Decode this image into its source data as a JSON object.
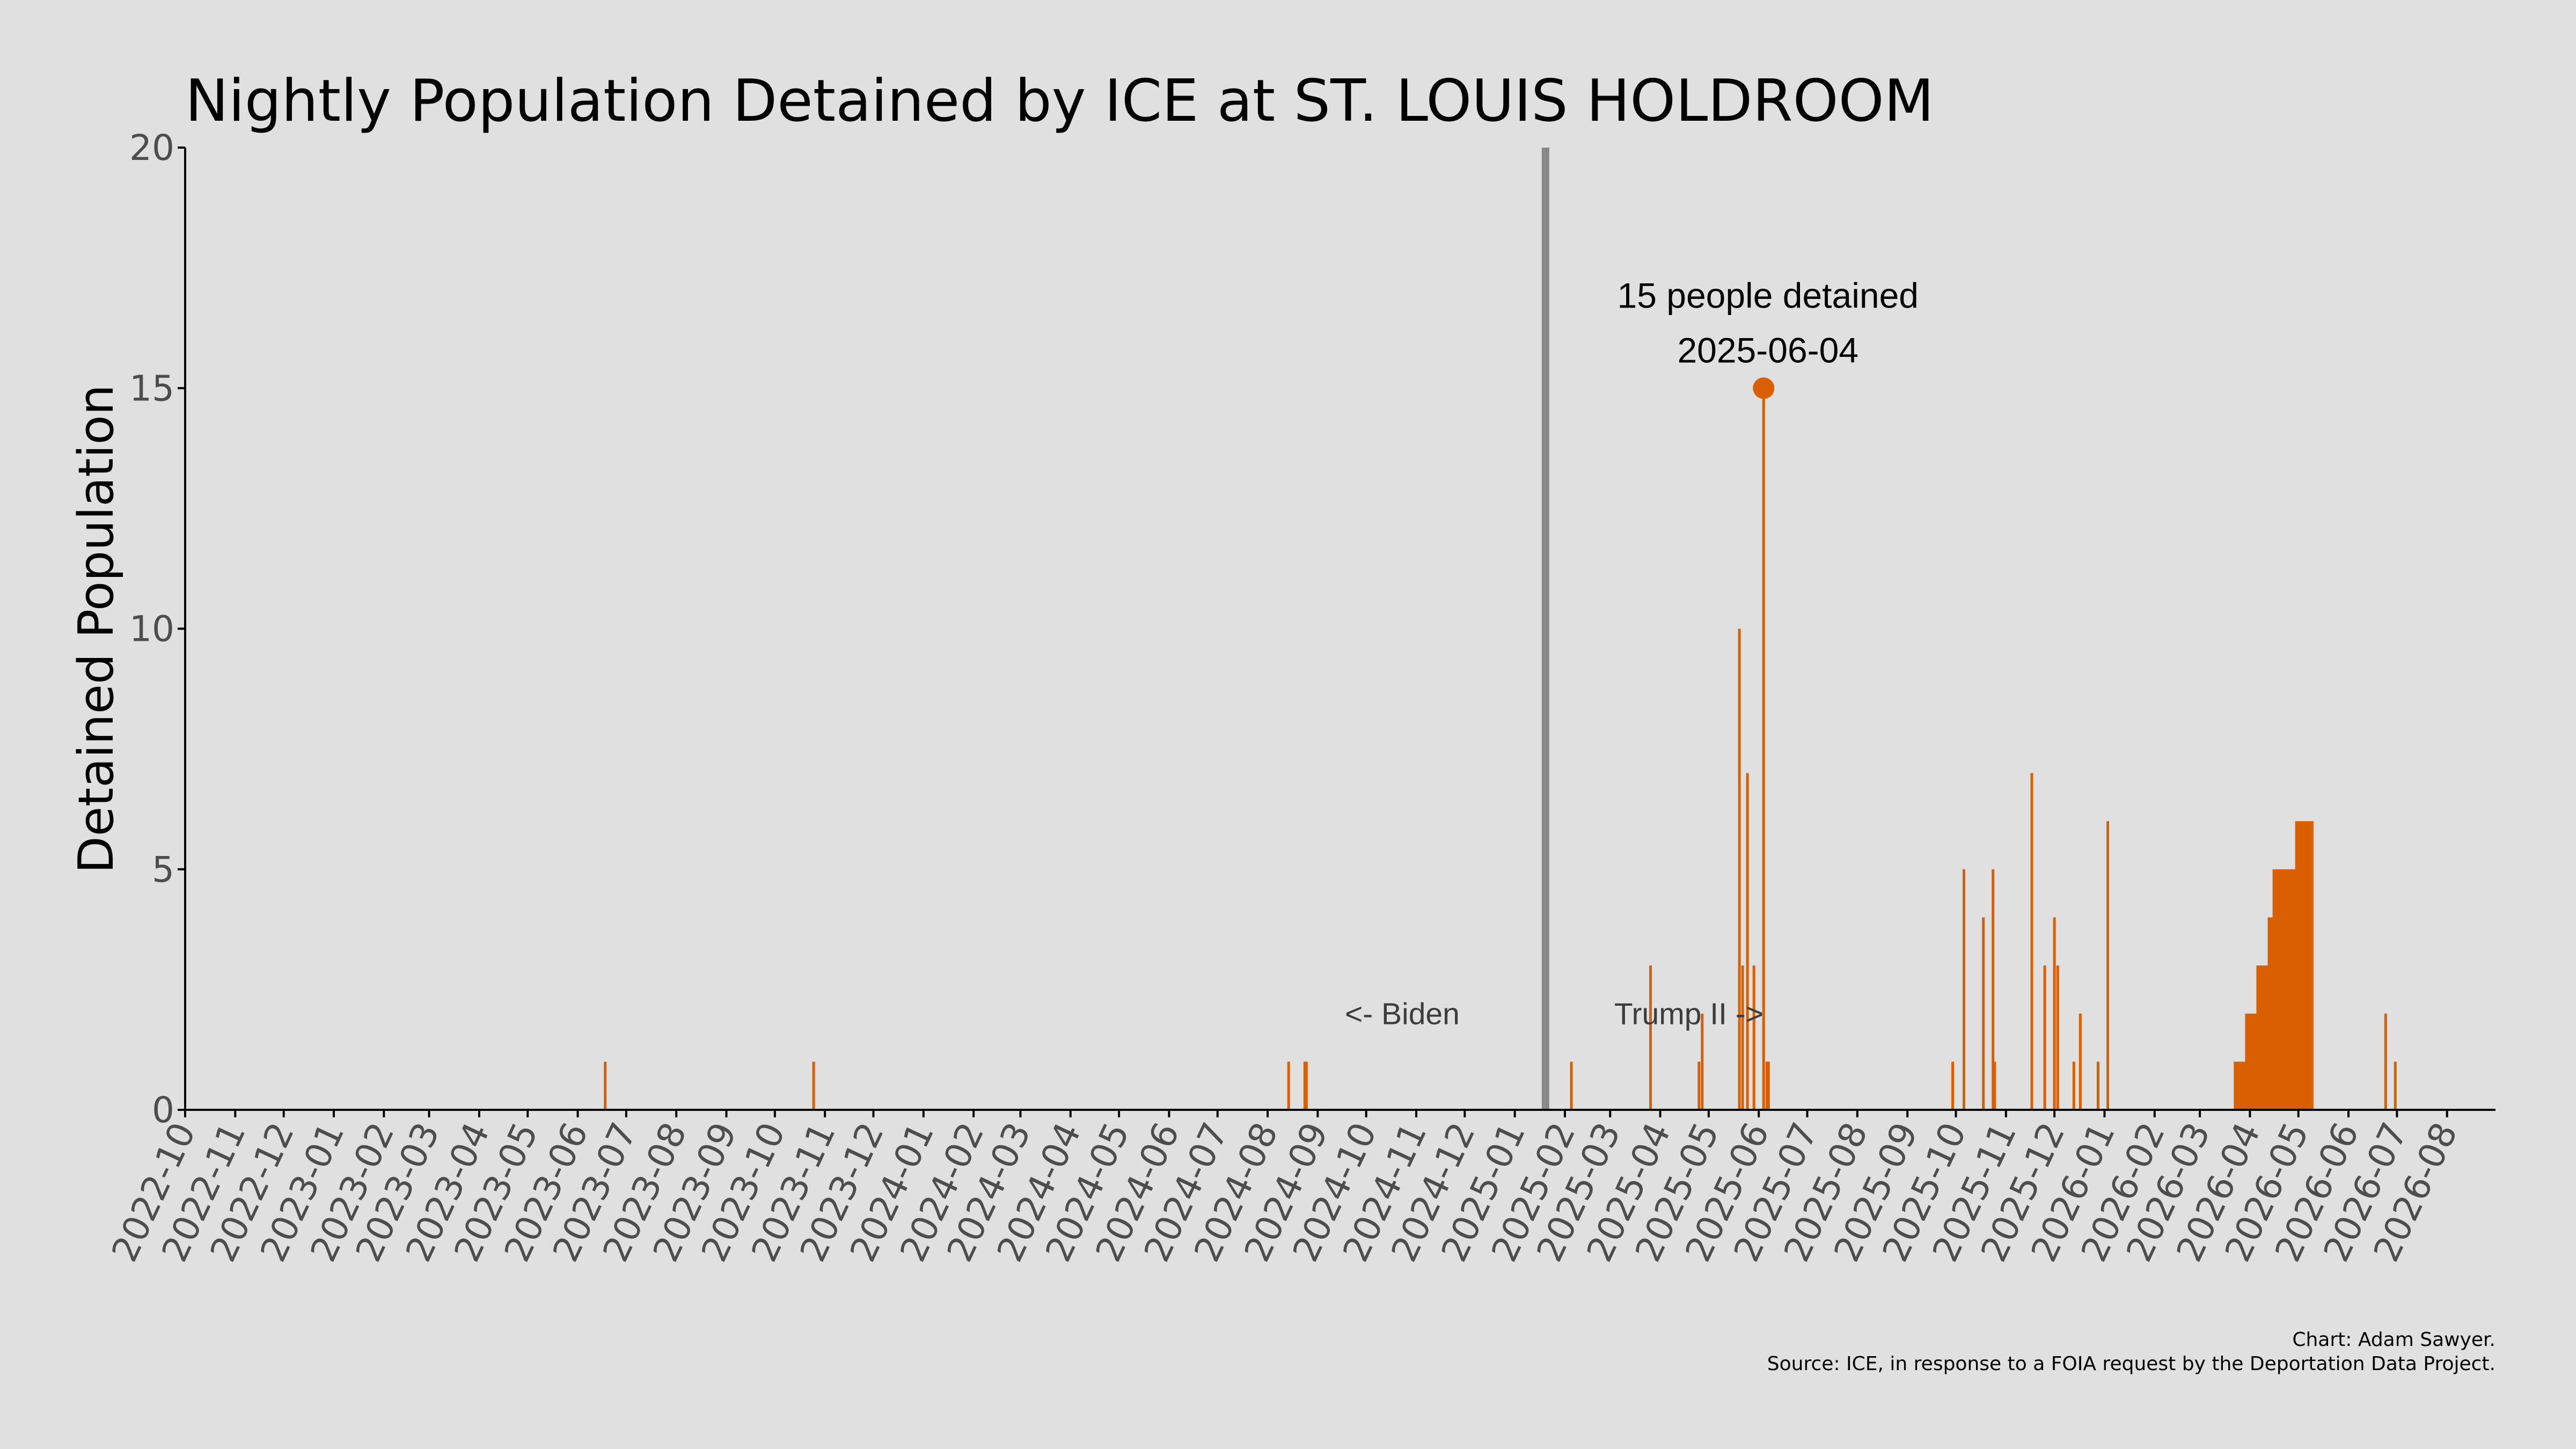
{
  "chart_data": {
    "type": "bar",
    "title": "Nightly Population Detained by ICE at ST. LOUIS HOLDROOM",
    "ylabel": "Detained Population",
    "xlabel": "",
    "ylim": [
      0,
      20
    ],
    "xlim": [
      "2022-10-01",
      "2026-08-31"
    ],
    "yticks": [
      0,
      5,
      10,
      15,
      20
    ],
    "xticks": [
      "2022-10",
      "2022-11",
      "2022-12",
      "2023-01",
      "2023-02",
      "2023-03",
      "2023-04",
      "2023-05",
      "2023-06",
      "2023-07",
      "2023-08",
      "2023-09",
      "2023-10",
      "2023-11",
      "2023-12",
      "2024-01",
      "2024-02",
      "2024-03",
      "2024-04",
      "2024-05",
      "2024-06",
      "2024-07",
      "2024-08",
      "2024-09",
      "2024-10",
      "2024-11",
      "2024-12",
      "2025-01",
      "2025-02",
      "2025-03",
      "2025-04",
      "2025-05",
      "2025-06",
      "2025-07",
      "2025-08",
      "2025-09",
      "2025-10",
      "2025-11",
      "2025-12",
      "2026-01",
      "2026-02",
      "2026-03",
      "2026-04",
      "2026-05",
      "2026-06",
      "2026-07",
      "2026-08"
    ],
    "grid": false,
    "bar_color": "#d95f02",
    "series": [
      {
        "points": [
          {
            "date": "2023-06-18",
            "value": 1
          },
          {
            "date": "2023-10-25",
            "value": 1
          },
          {
            "date": "2024-08-14",
            "value": 1
          },
          {
            "date": "2024-08-24",
            "value": 1
          },
          {
            "date": "2024-08-25",
            "value": 1
          },
          {
            "date": "2025-02-05",
            "value": 1
          },
          {
            "date": "2025-03-26",
            "value": 3
          },
          {
            "date": "2025-04-25",
            "value": 1
          },
          {
            "date": "2025-04-27",
            "value": 2
          },
          {
            "date": "2025-05-20",
            "value": 10
          },
          {
            "date": "2025-05-22",
            "value": 3
          },
          {
            "date": "2025-05-25",
            "value": 7
          },
          {
            "date": "2025-05-29",
            "value": 3
          },
          {
            "date": "2025-06-04",
            "value": 15
          },
          {
            "date": "2025-06-06",
            "value": 1
          },
          {
            "date": "2025-06-07",
            "value": 1
          },
          {
            "date": "2025-09-29",
            "value": 1
          },
          {
            "date": "2025-10-06",
            "value": 5
          },
          {
            "date": "2025-10-18",
            "value": 4
          },
          {
            "date": "2025-10-24",
            "value": 5
          },
          {
            "date": "2025-10-25",
            "value": 1
          },
          {
            "date": "2025-11-17",
            "value": 7
          },
          {
            "date": "2025-11-25",
            "value": 3
          },
          {
            "date": "2025-12-01",
            "value": 4
          },
          {
            "date": "2025-12-03",
            "value": 3
          },
          {
            "date": "2025-12-13",
            "value": 1
          },
          {
            "date": "2025-12-17",
            "value": 2
          },
          {
            "date": "2025-12-28",
            "value": 1
          },
          {
            "date": "2026-01-03",
            "value": 6
          },
          {
            "date": "2026-06-24",
            "value": 2
          },
          {
            "date": "2026-06-30",
            "value": 1
          }
        ],
        "ranges": [
          {
            "start": "2026-03-22",
            "end": "2026-03-29",
            "value": 1
          },
          {
            "start": "2026-03-29",
            "end": "2026-04-05",
            "value": 2
          },
          {
            "start": "2026-04-05",
            "end": "2026-04-12",
            "value": 3
          },
          {
            "start": "2026-04-12",
            "end": "2026-04-15",
            "value": 4
          },
          {
            "start": "2026-04-15",
            "end": "2026-04-29",
            "value": 5
          },
          {
            "start": "2026-04-29",
            "end": "2026-05-10",
            "value": 6
          }
        ]
      }
    ],
    "divider": {
      "date": "2025-01-20",
      "color": "#888888"
    },
    "era_labels": [
      {
        "text": "<- Biden",
        "value": 2
      },
      {
        "text": "Trump II ->",
        "value": 2
      }
    ],
    "peak_annotation": {
      "line1": "15 people detained",
      "line2": "2025-06-04",
      "date": "2025-06-04",
      "value": 15
    },
    "caption_lines": [
      "Chart: Adam Sawyer.",
      "Source: ICE, in response to a FOIA request by the Deportation Data Project."
    ]
  }
}
